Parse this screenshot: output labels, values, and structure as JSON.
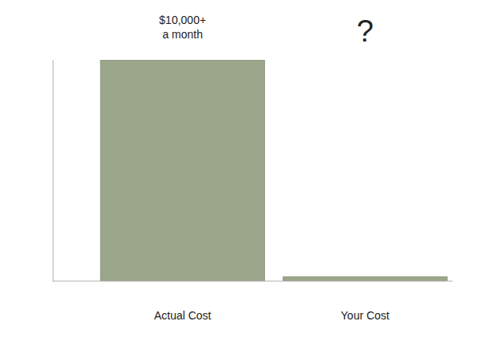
{
  "chart_data": {
    "type": "bar",
    "categories": [
      "Actual Cost",
      "Your Cost"
    ],
    "values": [
      10000,
      200
    ],
    "color": "#9aa58a",
    "ylim": [
      0,
      10000
    ],
    "tick_labels": "x",
    "annotations": [
      {
        "text": [
          "$10,000+",
          "a month"
        ],
        "x": "Actual Cost"
      },
      {
        "text": [
          "?"
        ],
        "x": "Your Cost"
      }
    ]
  }
}
